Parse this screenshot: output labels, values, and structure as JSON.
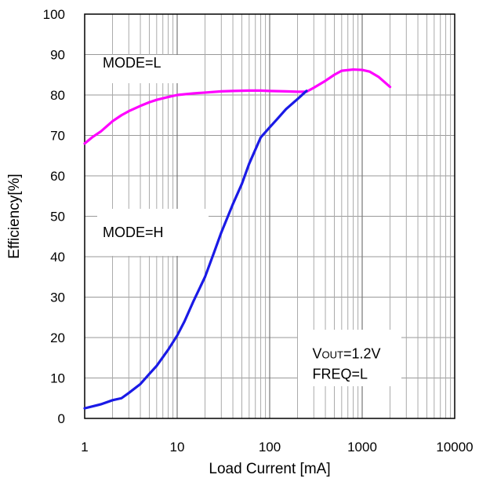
{
  "chart_data": {
    "type": "line",
    "title": "",
    "xlabel": "Load Current [mA]",
    "ylabel": "Efficiency[%]",
    "x_scale": "log",
    "xlim": [
      1,
      10000
    ],
    "ylim": [
      0,
      100
    ],
    "x_ticks": [
      1,
      10,
      100,
      1000,
      10000
    ],
    "x_tick_labels": [
      "1",
      "10",
      "100",
      "1000",
      "10000"
    ],
    "y_ticks": [
      0,
      10,
      20,
      30,
      40,
      50,
      60,
      70,
      80,
      90,
      100
    ],
    "y_tick_labels": [
      "0",
      "10",
      "20",
      "30",
      "40",
      "50",
      "60",
      "70",
      "80",
      "90",
      "100"
    ],
    "grid": true,
    "series": [
      {
        "name": "MODE=L",
        "color": "#ff00ff",
        "x": [
          1,
          1.2,
          1.5,
          2,
          2.5,
          3,
          4,
          5,
          6,
          8,
          10,
          15,
          20,
          30,
          40,
          60,
          80,
          100,
          150,
          200,
          250,
          300,
          400,
          500,
          600,
          800,
          1000,
          1200,
          1500,
          2000
        ],
        "y": [
          68,
          69.5,
          71,
          73.5,
          75,
          76,
          77.3,
          78.2,
          78.8,
          79.5,
          80,
          80.4,
          80.6,
          80.9,
          81,
          81.1,
          81.1,
          81,
          80.9,
          80.8,
          80.8,
          81.8,
          83.5,
          85,
          86,
          86.3,
          86.2,
          85.8,
          84.5,
          82
        ]
      },
      {
        "name": "MODE=H",
        "color": "#1a1ae6",
        "x": [
          1,
          1.5,
          2,
          2.5,
          3,
          4,
          5,
          6,
          8,
          10,
          12,
          15,
          20,
          25,
          30,
          40,
          50,
          60,
          80,
          100,
          120,
          150,
          200,
          250
        ],
        "y": [
          2.5,
          3.5,
          4.5,
          5,
          6.3,
          8.5,
          11,
          13,
          17,
          20.5,
          24,
          29,
          35,
          41,
          46,
          53,
          58,
          63,
          69.5,
          72,
          74,
          76.5,
          79,
          81
        ]
      }
    ],
    "annotations": [
      {
        "text": "MODE=L",
        "x": 1.5,
        "y": 88
      },
      {
        "text": "MODE=H",
        "x": 1.5,
        "y": 46
      },
      {
        "text": "VOUT=1.2V",
        "x": 500,
        "y": 16
      },
      {
        "text": "FREQ=L",
        "x": 500,
        "y": 11
      }
    ]
  }
}
